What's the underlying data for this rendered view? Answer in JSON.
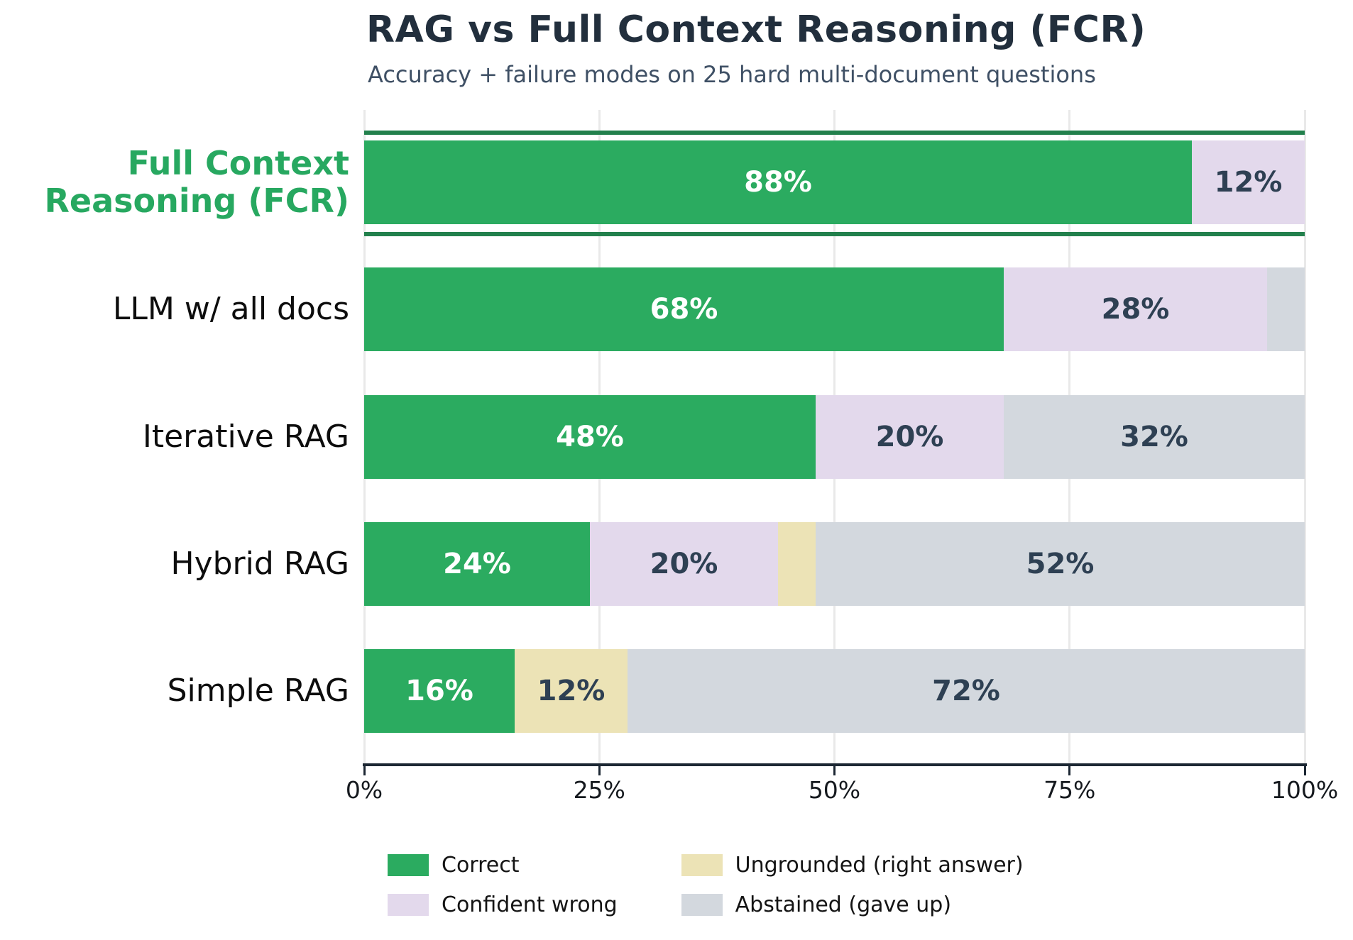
{
  "header": {
    "title": "RAG vs Full Context Reasoning (FCR)",
    "subtitle": "Accuracy + failure modes on 25 hard multi-document questions"
  },
  "colors": {
    "correct": "#2bab60",
    "confident_wrong": "#e3d9ec",
    "ungrounded": "#ece3b6",
    "abstained": "#d3d8de",
    "highlight_line": "#22804c",
    "axis": "#1c2733",
    "gridline": "#e9e9e9",
    "label_on_green": "#ffffff",
    "label_dark": "#2e4053",
    "fcr_label_green": "#27a860"
  },
  "chart_data": {
    "type": "bar",
    "orientation": "horizontal",
    "stacked": true,
    "title": "RAG vs Full Context Reasoning (FCR)",
    "subtitle": "Accuracy + failure modes on 25 hard multi-document questions",
    "xlim": [
      0,
      100
    ],
    "x_ticks": [
      {
        "label": "0%",
        "value": 0
      },
      {
        "label": "25%",
        "value": 25
      },
      {
        "label": "50%",
        "value": 50
      },
      {
        "label": "75%",
        "value": 75
      },
      {
        "label": "100%",
        "value": 100
      }
    ],
    "grid": true,
    "bar_label_min_pct": 10,
    "series_names": [
      "Correct",
      "Confident wrong",
      "Ungrounded (right answer)",
      "Abstained (gave up)"
    ],
    "series_colors": [
      "#2bab60",
      "#e3d9ec",
      "#ece3b6",
      "#d3d8de"
    ],
    "rows": [
      {
        "label": "Full Context Reasoning (FCR)",
        "label_lines": [
          "Full Context",
          "Reasoning (FCR)"
        ],
        "highlighted": true,
        "values": [
          88,
          12,
          0,
          0
        ],
        "shown_value_labels": [
          "88%",
          "12%"
        ]
      },
      {
        "label": "LLM w/ all docs",
        "label_lines": [
          "LLM w/ all docs"
        ],
        "highlighted": false,
        "values": [
          68,
          28,
          0,
          4
        ],
        "shown_value_labels": [
          "68%",
          "28%"
        ]
      },
      {
        "label": "Iterative RAG",
        "label_lines": [
          "Iterative RAG"
        ],
        "highlighted": false,
        "values": [
          48,
          20,
          0,
          32
        ],
        "shown_value_labels": [
          "48%",
          "20%",
          "32%"
        ]
      },
      {
        "label": "Hybrid RAG",
        "label_lines": [
          "Hybrid RAG"
        ],
        "highlighted": false,
        "values": [
          24,
          20,
          4,
          52
        ],
        "shown_value_labels": [
          "24%",
          "20%",
          "52%"
        ]
      },
      {
        "label": "Simple RAG",
        "label_lines": [
          "Simple RAG"
        ],
        "highlighted": false,
        "values": [
          16,
          0,
          12,
          72
        ],
        "shown_value_labels": [
          "16%",
          "12%",
          "72%"
        ]
      }
    ],
    "legend": [
      {
        "label": "Correct",
        "color": "#2bab60"
      },
      {
        "label": "Confident wrong",
        "color": "#e3d9ec"
      },
      {
        "label": "Ungrounded (right answer)",
        "color": "#ece3b6"
      },
      {
        "label": "Abstained (gave up)",
        "color": "#d3d8de"
      }
    ],
    "legend_position": "bottom",
    "legend_columns": 2
  }
}
